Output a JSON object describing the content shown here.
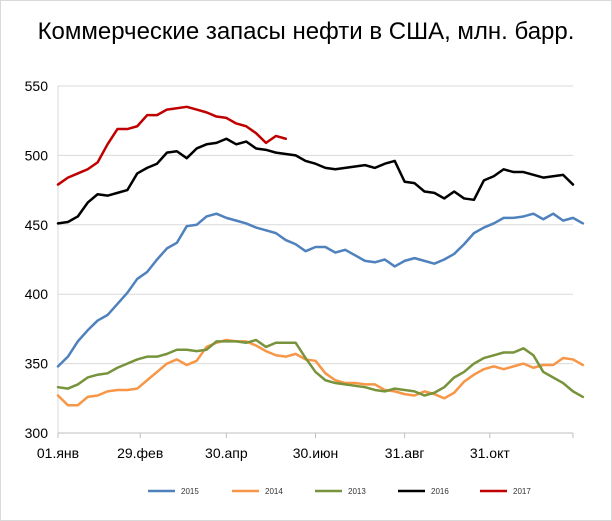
{
  "chart_data": {
    "type": "line",
    "title": "Коммерческие запасы нефти в США, млн. барр.",
    "xlabel": "",
    "ylabel": "",
    "ylim": [
      300,
      550
    ],
    "yticks": [
      300,
      350,
      400,
      450,
      500,
      550
    ],
    "xlim": [
      0,
      52
    ],
    "x_tick_positions": [
      0,
      8.3,
      17,
      26,
      35,
      43.6
    ],
    "x_tick_labels": [
      "01.янв",
      "29.фев",
      "30.апр",
      "30.июн",
      "31.авг",
      "31.окт"
    ],
    "x_unit": "week of year",
    "grid": true,
    "legend_position": "bottom",
    "series": [
      {
        "name": "2015",
        "color": "#4f81bd",
        "values": [
          348,
          355,
          366,
          374,
          381,
          385,
          393,
          401,
          411,
          416,
          425,
          433,
          437,
          449,
          450,
          456,
          458,
          455,
          453,
          451,
          448,
          446,
          444,
          439,
          436,
          431,
          434,
          434,
          430,
          432,
          428,
          424,
          423,
          425,
          420,
          424,
          426,
          424,
          422,
          425,
          429,
          436,
          444,
          448,
          451,
          455,
          455,
          456,
          458,
          454,
          458,
          453,
          455,
          451
        ]
      },
      {
        "name": "2014",
        "color": "#f79646",
        "values": [
          327,
          320,
          320,
          326,
          327,
          330,
          331,
          331,
          332,
          338,
          344,
          350,
          353,
          349,
          352,
          362,
          365,
          367,
          366,
          366,
          363,
          359,
          356,
          355,
          357,
          353,
          352,
          343,
          338,
          336,
          336,
          335,
          335,
          331,
          330,
          328,
          327,
          330,
          328,
          325,
          329,
          337,
          342,
          346,
          348,
          346,
          348,
          350,
          347,
          349,
          349,
          354,
          353,
          349
        ]
      },
      {
        "name": "2013",
        "color": "#77933c",
        "values": [
          333,
          332,
          335,
          340,
          342,
          343,
          347,
          350,
          353,
          355,
          355,
          357,
          360,
          360,
          359,
          360,
          366,
          366,
          366,
          365,
          367,
          362,
          365,
          365,
          365,
          354,
          344,
          338,
          336,
          335,
          334,
          333,
          331,
          330,
          332,
          331,
          330,
          327,
          329,
          333,
          340,
          344,
          350,
          354,
          356,
          358,
          358,
          361,
          356,
          344,
          340,
          336,
          330,
          326
        ]
      },
      {
        "name": "2016",
        "color": "#000000",
        "values": [
          451,
          452,
          456,
          466,
          472,
          471,
          473,
          475,
          487,
          491,
          494,
          502,
          503,
          498,
          505,
          508,
          509,
          512,
          508,
          510,
          505,
          504,
          502,
          501,
          500,
          496,
          494,
          491,
          490,
          491,
          492,
          493,
          491,
          494,
          496,
          481,
          480,
          474,
          473,
          469,
          474,
          469,
          468,
          482,
          485,
          490,
          488,
          488,
          486,
          484,
          485,
          486,
          479
        ]
      },
      {
        "name": "2017",
        "color": "#c00000",
        "values": [
          479,
          484,
          487,
          490,
          495,
          508,
          519,
          519,
          521,
          529,
          529,
          533,
          534,
          535,
          533,
          531,
          528,
          527,
          523,
          521,
          516,
          509,
          514,
          512
        ]
      }
    ]
  }
}
